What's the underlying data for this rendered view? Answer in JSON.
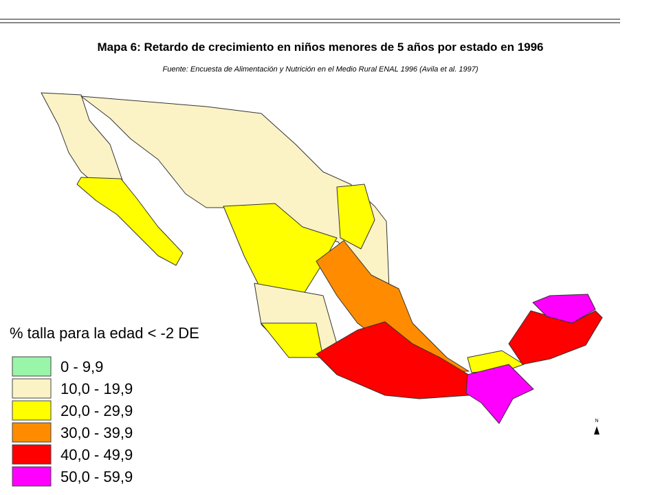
{
  "header": {
    "title": "Mapa 6: Retardo de crecimiento en niños menores de 5 años por estado en 1996",
    "source": "Fuente: Encuesta de Alimentación y Nutrición en el Medio Rural ENAL 1996 (Avila et al. 1997)"
  },
  "legend": {
    "title": "% talla para la edad < -2 DE",
    "items": [
      {
        "label": "0 - 9,9",
        "color": "#99f5a8"
      },
      {
        "label": "10,0 - 19,9",
        "color": "#fbf3c6"
      },
      {
        "label": "20,0 - 29,9",
        "color": "#ffff00"
      },
      {
        "label": "30,0 - 39,9",
        "color": "#ff8c00"
      },
      {
        "label": "40,0 - 49,9",
        "color": "#ff0000"
      },
      {
        "label": "50,0 - 59,9",
        "color": "#ff00ff"
      }
    ]
  },
  "north": "N"
}
